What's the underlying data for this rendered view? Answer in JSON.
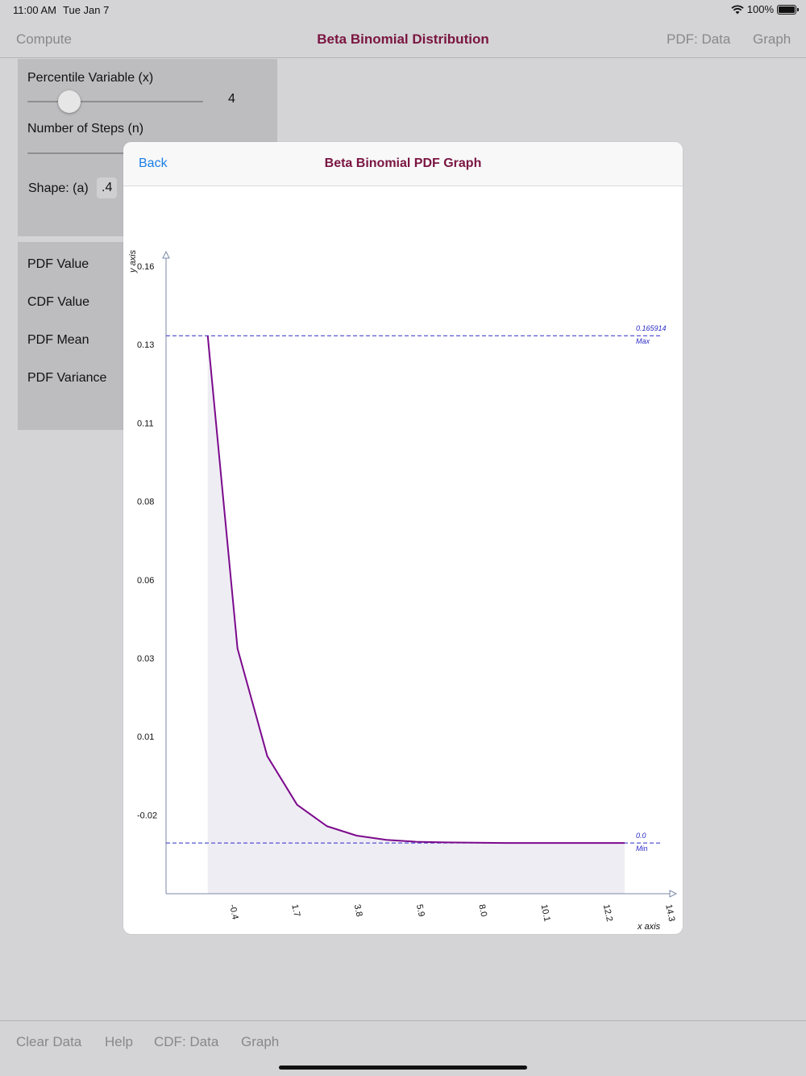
{
  "status": {
    "time": "11:00 AM",
    "date": "Tue Jan 7",
    "battery": "100%"
  },
  "nav": {
    "left": "Compute",
    "title": "Beta Binomial Distribution",
    "right1": "PDF:  Data",
    "right2": "Graph"
  },
  "inputs": {
    "percentile_label": "Percentile Variable (x)",
    "percentile_value": "4",
    "percentile_slider_fraction": 0.24,
    "steps_label": "Number of Steps (n)",
    "shape_label": "Shape: (a)",
    "shape_value": ".4"
  },
  "results": {
    "pdf_value": "PDF Value",
    "cdf_value": "CDF Value",
    "pdf_mean": "PDF Mean",
    "pdf_variance": "PDF Variance"
  },
  "modal": {
    "back": "Back",
    "title": "Beta Binomial PDF Graph"
  },
  "toolbar": {
    "clear": "Clear Data",
    "help": "Help",
    "cdf": "CDF: Data",
    "graph": "Graph"
  },
  "colors": {
    "title": "#7a1541",
    "link": "#1b7ee6",
    "line": "#7b0a8c",
    "fill": "#efedf4",
    "reference": "#2c2cc8"
  },
  "chart_data": {
    "type": "area",
    "xlabel": "x axis",
    "ylabel": "y axis",
    "x_tick_labels": [
      "-0.4",
      "1.7",
      "3.8",
      "5.9",
      "8.0",
      "10.1",
      "12.2",
      "14.3"
    ],
    "y_tick_labels": [
      "0.16",
      "0.13",
      "0.11",
      "0.08",
      "0.06",
      "0.03",
      "0.01",
      "-0.02"
    ],
    "x": [
      0,
      1,
      2,
      3,
      4,
      5,
      6,
      7,
      8,
      9,
      10,
      11,
      12,
      13,
      14
    ],
    "y": [
      0.165914,
      0.0636,
      0.0284,
      0.0125,
      0.0055,
      0.0024,
      0.001,
      0.0004,
      0.0002,
      0.0001,
      0.0,
      0.0,
      0.0,
      0.0,
      0.0
    ],
    "xlim": [
      -1.4,
      15.3
    ],
    "ylim": [
      -0.0166,
      0.1913
    ],
    "reference_lines": [
      {
        "value": 0.165914,
        "label": "0.165914",
        "sublabel": "Max"
      },
      {
        "value": 0.0,
        "label": "0.0",
        "sublabel": "Min"
      }
    ]
  }
}
